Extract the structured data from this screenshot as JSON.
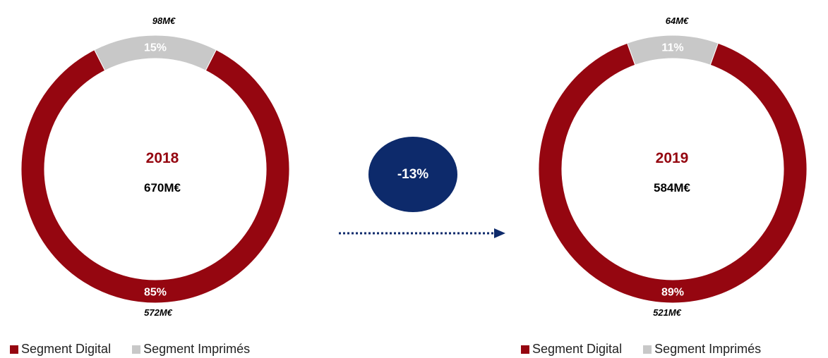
{
  "colors": {
    "digital": "#950610",
    "imprimes": "#c8c8c8",
    "accent": "#0d2a6b"
  },
  "chart_data": [
    {
      "type": "pie",
      "year": "2018",
      "total": "670M€",
      "slices": [
        {
          "name": "Segment Digital",
          "value": 85,
          "pct_label": "85%",
          "amount": "572M€"
        },
        {
          "name": "Segment Imprimés",
          "value": 15,
          "pct_label": "15%",
          "amount": "98M€"
        }
      ]
    },
    {
      "type": "pie",
      "year": "2019",
      "total": "584M€",
      "slices": [
        {
          "name": "Segment Digital",
          "value": 89,
          "pct_label": "89%",
          "amount": "521M€"
        },
        {
          "name": "Segment Imprimés",
          "value": 11,
          "pct_label": "11%",
          "amount": "64M€"
        }
      ]
    }
  ],
  "change": {
    "label": "-13%"
  },
  "legend": [
    {
      "label": "Segment Digital"
    },
    {
      "label": "Segment Imprimés"
    }
  ]
}
